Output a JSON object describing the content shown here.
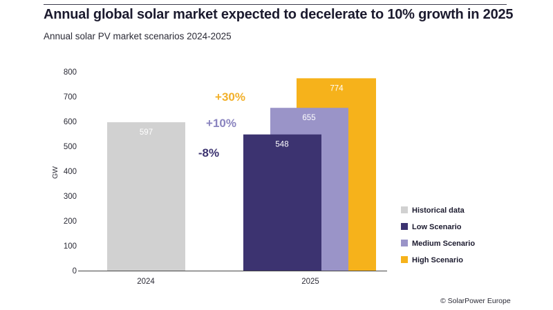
{
  "header": {
    "title": "Annual global solar market expected to decelerate to 10% growth in 2025",
    "subtitle": "Annual solar PV market scenarios 2024-2025"
  },
  "footer": {
    "credit": "© SolarPower Europe"
  },
  "chart_data": {
    "type": "bar",
    "title": "Annual global solar market expected to decelerate to 10% growth in 2025",
    "subtitle": "Annual solar PV market scenarios 2024-2025",
    "xlabel": "",
    "ylabel": "GW",
    "ylim": [
      0,
      800
    ],
    "yticks": [
      0,
      100,
      200,
      300,
      400,
      500,
      600,
      700,
      800
    ],
    "grid": false,
    "legend_position": "right",
    "categories": [
      "2024",
      "2025"
    ],
    "series": [
      {
        "name": "Historical data",
        "color": "#d1d1d1",
        "category": "2024",
        "value": 597,
        "label": "597"
      },
      {
        "name": "Low Scenario",
        "color": "#3c3370",
        "category": "2025",
        "value": 548,
        "label": "548"
      },
      {
        "name": "Medium Scenario",
        "color": "#9a94c8",
        "category": "2025",
        "value": 655,
        "label": "655"
      },
      {
        "name": "High Scenario",
        "color": "#f6b21b",
        "category": "2025",
        "value": 774,
        "label": "774"
      }
    ],
    "annotations": [
      {
        "text": "-8%",
        "series": "Low Scenario",
        "color": "#3c3370"
      },
      {
        "text": "+10%",
        "series": "Medium Scenario",
        "color": "#8a84bf"
      },
      {
        "text": "+30%",
        "series": "High Scenario",
        "color": "#f2b02a"
      }
    ]
  }
}
